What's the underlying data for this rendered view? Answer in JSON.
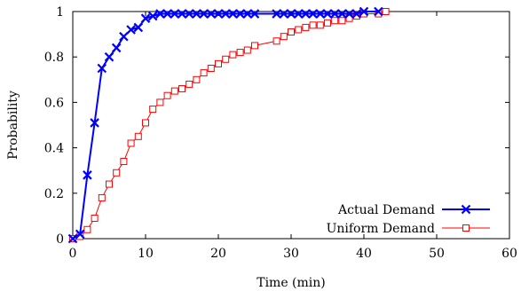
{
  "chart_data": {
    "type": "line",
    "title": "",
    "xlabel": "Time (min)",
    "ylabel": "Probability",
    "xlim": [
      0,
      60
    ],
    "ylim": [
      0,
      1
    ],
    "x_ticks": [
      0,
      10,
      20,
      30,
      40,
      50,
      60
    ],
    "y_ticks": [
      0,
      0.2,
      0.4,
      0.6,
      0.8,
      1
    ],
    "x_tick_labels": [
      "0",
      "10",
      "20",
      "30",
      "40",
      "50",
      "60"
    ],
    "y_tick_labels": [
      "0",
      "0.2",
      "0.4",
      "0.6",
      "0.8",
      "1"
    ],
    "grid": false,
    "legend_position": "bottom-right",
    "series": [
      {
        "name": "Actual Demand",
        "color": "#0000ff",
        "marker": "x",
        "x": [
          0,
          1,
          2,
          3,
          4,
          5,
          6,
          7,
          8,
          9,
          10,
          11,
          12,
          13,
          14,
          15,
          16,
          17,
          18,
          19,
          20,
          21,
          22,
          23,
          24,
          25,
          28,
          29,
          30,
          31,
          32,
          33,
          34,
          35,
          36,
          37,
          38,
          39,
          40,
          42
        ],
        "y": [
          0,
          0.02,
          0.28,
          0.51,
          0.75,
          0.8,
          0.84,
          0.89,
          0.92,
          0.93,
          0.97,
          0.98,
          0.99,
          0.99,
          0.99,
          0.99,
          0.99,
          0.99,
          0.99,
          0.99,
          0.99,
          0.99,
          0.99,
          0.99,
          0.99,
          0.99,
          0.99,
          0.99,
          0.99,
          0.99,
          0.99,
          0.99,
          0.99,
          0.99,
          0.99,
          0.99,
          0.99,
          0.99,
          1.0,
          1.0
        ]
      },
      {
        "name": "Uniform Demand",
        "color": "#ff0000",
        "marker": "square",
        "x": [
          0,
          1,
          2,
          3,
          4,
          5,
          6,
          7,
          8,
          9,
          10,
          11,
          12,
          13,
          14,
          15,
          16,
          17,
          18,
          19,
          20,
          21,
          22,
          23,
          24,
          25,
          28,
          29,
          30,
          31,
          32,
          33,
          34,
          35,
          36,
          37,
          38,
          39,
          40,
          42,
          43
        ],
        "y": [
          0,
          0.01,
          0.04,
          0.09,
          0.18,
          0.24,
          0.29,
          0.34,
          0.42,
          0.45,
          0.51,
          0.57,
          0.6,
          0.63,
          0.65,
          0.66,
          0.68,
          0.7,
          0.73,
          0.75,
          0.77,
          0.79,
          0.81,
          0.82,
          0.83,
          0.85,
          0.87,
          0.89,
          0.91,
          0.92,
          0.93,
          0.94,
          0.94,
          0.95,
          0.96,
          0.96,
          0.97,
          0.98,
          0.99,
          0.99,
          1.0
        ]
      }
    ]
  }
}
